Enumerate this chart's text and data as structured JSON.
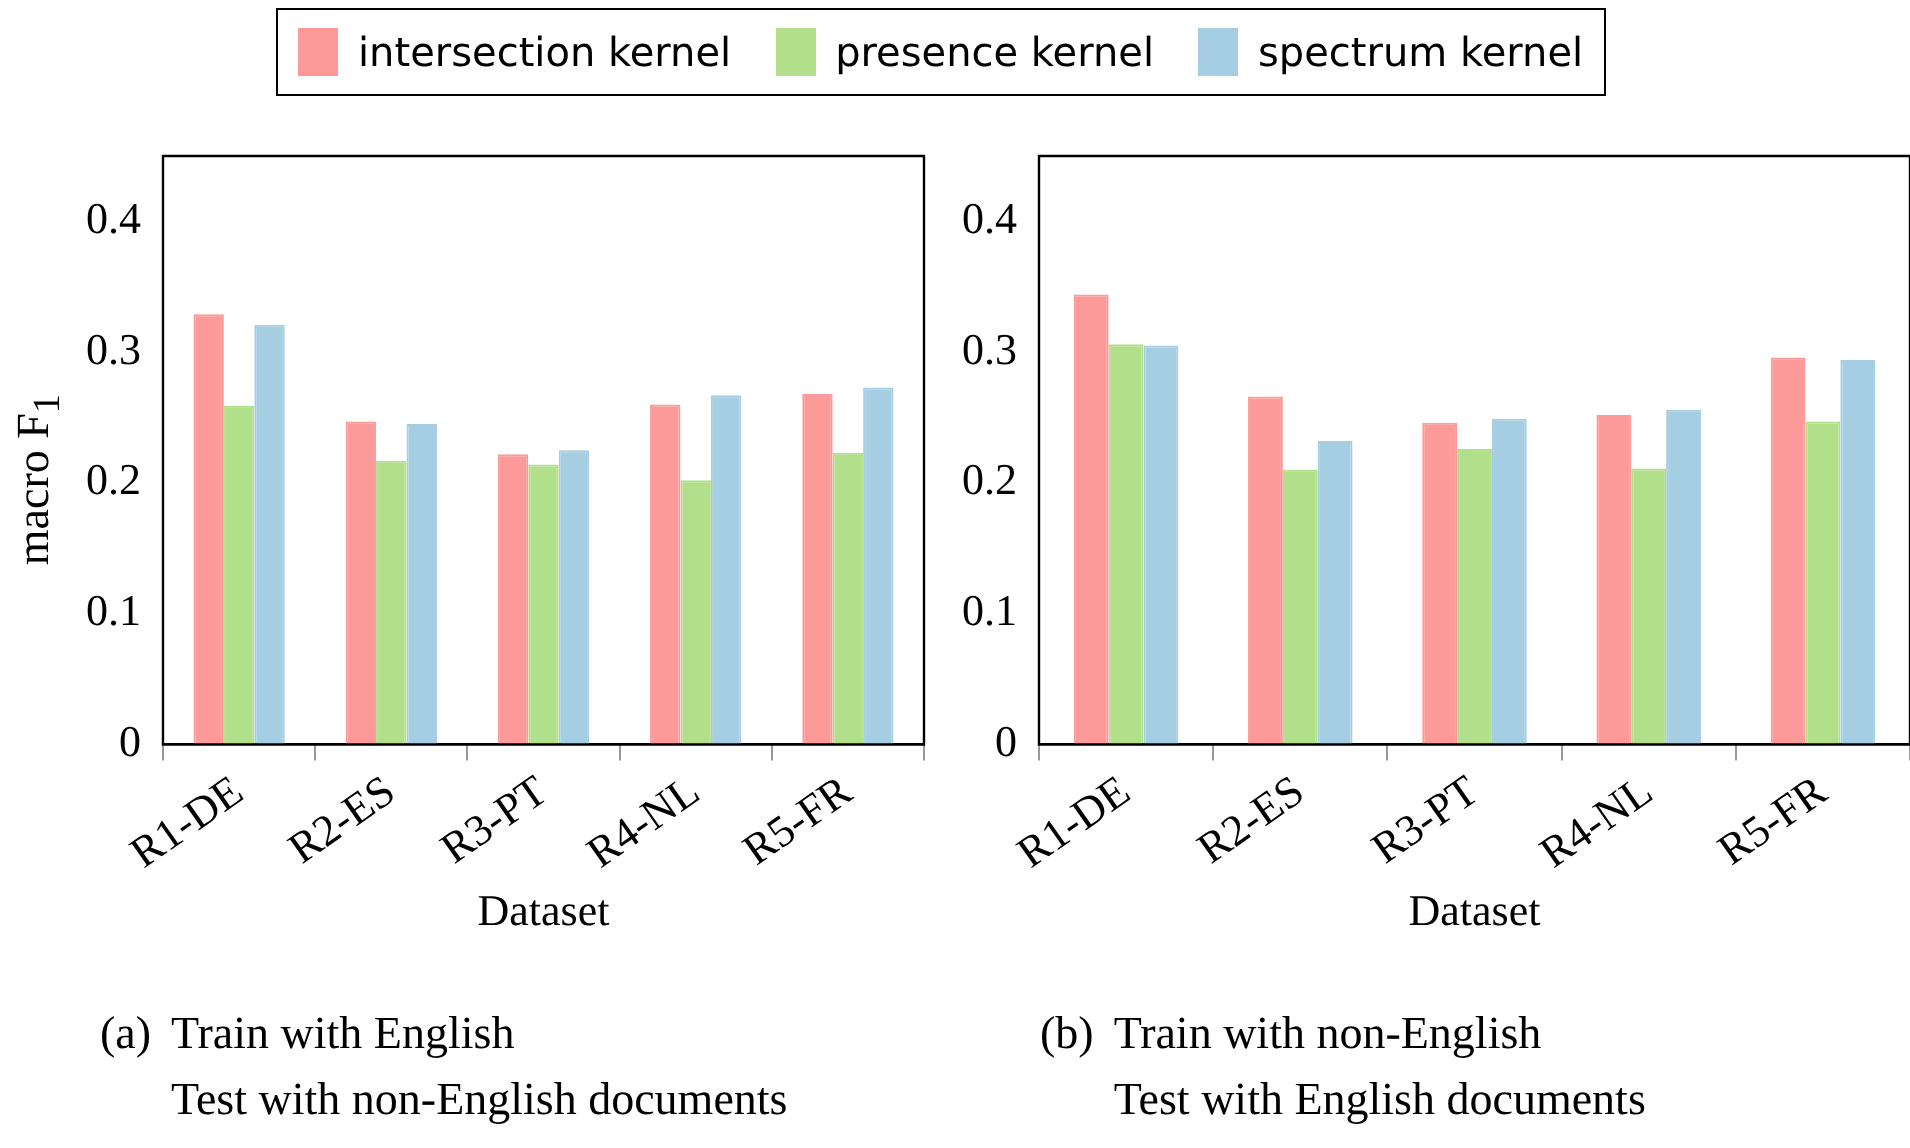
{
  "chart_data": [
    {
      "type": "bar",
      "categories": [
        "R1-DE",
        "R2-ES",
        "R3-PT",
        "R4-NL",
        "R5-FR"
      ],
      "xlabel": "Dataset",
      "ylabel": "macro F$_{1}$",
      "ylim": [
        0,
        0.45
      ],
      "yticks": [
        0,
        0.1,
        0.2,
        0.3,
        0.4
      ],
      "grid": false,
      "legend": "top",
      "series": [
        {
          "name": "intersection kernel",
          "color": "#fb9a99",
          "values": [
            0.329,
            0.247,
            0.222,
            0.26,
            0.268
          ]
        },
        {
          "name": "presence kernel",
          "color": "#b2df8a",
          "values": [
            0.259,
            0.217,
            0.214,
            0.202,
            0.223
          ]
        },
        {
          "name": "spectrum kernel",
          "color": "#a6cee3",
          "values": [
            0.321,
            0.245,
            0.225,
            0.267,
            0.273
          ]
        }
      ],
      "annotations": [
        "(a)",
        "Train with English",
        "Test with non-English documents"
      ]
    },
    {
      "type": "bar",
      "categories": [
        "R1-DE",
        "R2-ES",
        "R3-PT",
        "R4-NL",
        "R5-FR"
      ],
      "xlabel": "Dataset",
      "ylim": [
        0,
        0.45
      ],
      "yticks": [
        0,
        0.1,
        0.2,
        0.3,
        0.4
      ],
      "grid": false,
      "series": [
        {
          "color": "#fb9a99",
          "values": [
            0.344,
            0.266,
            0.246,
            0.252,
            0.296
          ]
        },
        {
          "color": "#b2df8a",
          "values": [
            0.306,
            0.21,
            0.226,
            0.211,
            0.247
          ]
        },
        {
          "color": "#a6cee3",
          "values": [
            0.305,
            0.232,
            0.249,
            0.256,
            0.294
          ]
        }
      ],
      "annotations": [
        "(b)",
        "Train with non-English",
        "Test with English documents"
      ]
    }
  ]
}
